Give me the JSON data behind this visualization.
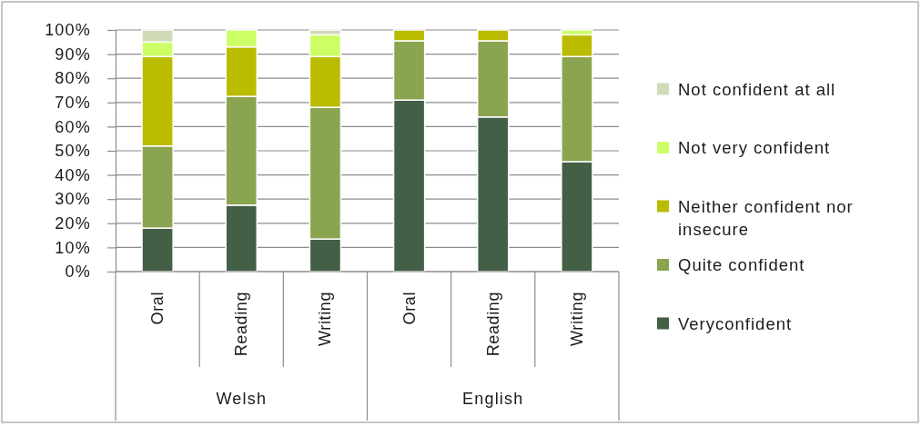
{
  "chart_data": {
    "type": "bar",
    "stacked": true,
    "categories": [
      "Oral",
      "Reading",
      "Writing",
      "Oral",
      "Reading",
      "Writing"
    ],
    "series": [
      {
        "name": "Veryconfident",
        "color": "#435f46",
        "values": [
          18,
          27.5,
          13.5,
          71,
          64,
          45.5
        ]
      },
      {
        "name": "Quite confident",
        "color": "#8aa44f",
        "values": [
          34,
          45,
          54.5,
          24.5,
          31.5,
          43.5
        ]
      },
      {
        "name": "Neither confident nor insecure",
        "color": "#bbbb00",
        "values": [
          37,
          20.5,
          21,
          4.5,
          4.5,
          9
        ]
      },
      {
        "name": "Not very confident",
        "color": "#ccff66",
        "values": [
          6,
          7,
          9,
          0,
          0,
          2
        ]
      },
      {
        "name": "Not confident at all",
        "color": "#d0dbb8",
        "values": [
          5,
          0,
          2,
          0,
          0,
          0
        ]
      }
    ],
    "ylim": [
      0,
      100
    ],
    "yticks": [
      {
        "value": 0,
        "label": "0%"
      },
      {
        "value": 10,
        "label": "10%"
      },
      {
        "value": 20,
        "label": "20%"
      },
      {
        "value": 30,
        "label": "30%"
      },
      {
        "value": 40,
        "label": "40%"
      },
      {
        "value": 50,
        "label": "50%"
      },
      {
        "value": 60,
        "label": "60%"
      },
      {
        "value": 70,
        "label": "70%"
      },
      {
        "value": 80,
        "label": "80%"
      },
      {
        "value": 90,
        "label": "90%"
      },
      {
        "value": 100,
        "label": "100%"
      }
    ],
    "grid": "y",
    "legend": "right",
    "annotations": [
      "Welsh",
      "English"
    ]
  }
}
